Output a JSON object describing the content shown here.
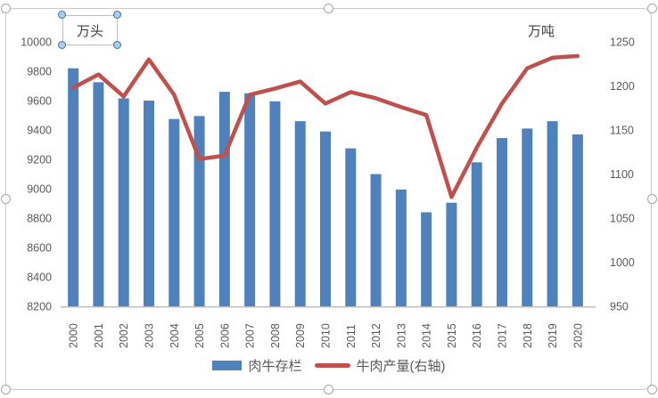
{
  "chart_data": {
    "type": "combo-bar-line",
    "categories": [
      "2000",
      "2001",
      "2002",
      "2003",
      "2004",
      "2005",
      "2006",
      "2007",
      "2008",
      "2009",
      "2010",
      "2011",
      "2012",
      "2013",
      "2014",
      "2015",
      "2016",
      "2017",
      "2018",
      "2019",
      "2020"
    ],
    "series": [
      {
        "name": "肉牛存栏",
        "type": "bar",
        "axis": "left",
        "color": "#4F81BD",
        "values": [
          9820,
          9725,
          9615,
          9600,
          9475,
          9495,
          9660,
          9650,
          9595,
          9460,
          9390,
          9275,
          9100,
          8995,
          8840,
          8905,
          9180,
          9345,
          9410,
          9460,
          9370
        ]
      },
      {
        "name": "牛肉产量(右轴)",
        "type": "line",
        "axis": "right",
        "color": "#C0504D",
        "values": [
          1198,
          1213,
          1188,
          1230,
          1190,
          1117,
          1121,
          1190,
          1197,
          1205,
          1180,
          1193,
          1186,
          1176,
          1167,
          1074,
          1130,
          1180,
          1220,
          1232,
          1234
        ]
      }
    ],
    "left_axis": {
      "title": "万头",
      "min": 8200,
      "max": 10000,
      "step": 200,
      "ticks": [
        8200,
        8400,
        8600,
        8800,
        9000,
        9200,
        9400,
        9600,
        9800,
        10000
      ]
    },
    "right_axis": {
      "title": "万吨",
      "min": 950,
      "max": 1250,
      "step": 50,
      "ticks": [
        950,
        1000,
        1050,
        1100,
        1150,
        1200,
        1250
      ]
    },
    "legend": {
      "position": "bottom",
      "entries": [
        "肉牛存栏",
        "牛肉产量(右轴)"
      ]
    },
    "grid": false,
    "ui_state": "chart-object-selected; left axis title text box selected"
  }
}
